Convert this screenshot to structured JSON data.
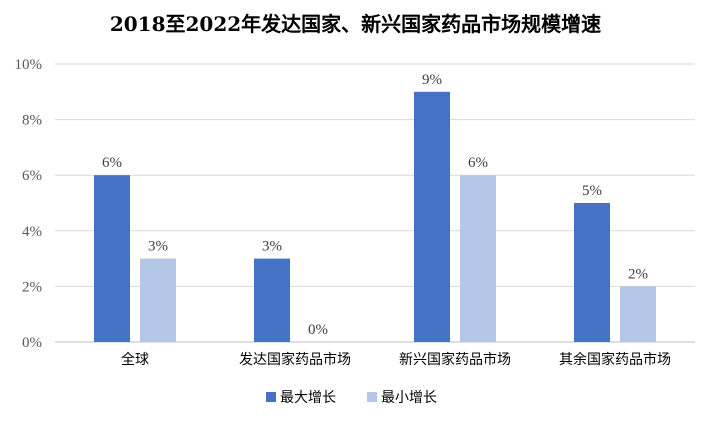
{
  "chart_data": {
    "type": "bar",
    "title": "2018至2022年发达国家、新兴国家药品市场规模增速",
    "categories": [
      "全球",
      "发达国家药品市场",
      "新兴国家药品市场",
      "其余国家药品市场"
    ],
    "series": [
      {
        "name": "最大增长",
        "values": [
          6,
          3,
          9,
          5
        ],
        "labels": [
          "6%",
          "3%",
          "9%",
          "5%"
        ],
        "color": "#4472C4"
      },
      {
        "name": "最小增长",
        "values": [
          3,
          0,
          6,
          2
        ],
        "labels": [
          "3%",
          "0%",
          "6%",
          "2%"
        ],
        "color": "#B4C7E7"
      }
    ],
    "yticks": [
      "0%",
      "2%",
      "4%",
      "6%",
      "8%",
      "10%"
    ],
    "ylim": [
      0,
      10
    ],
    "grid": true,
    "legend": "bottom"
  }
}
